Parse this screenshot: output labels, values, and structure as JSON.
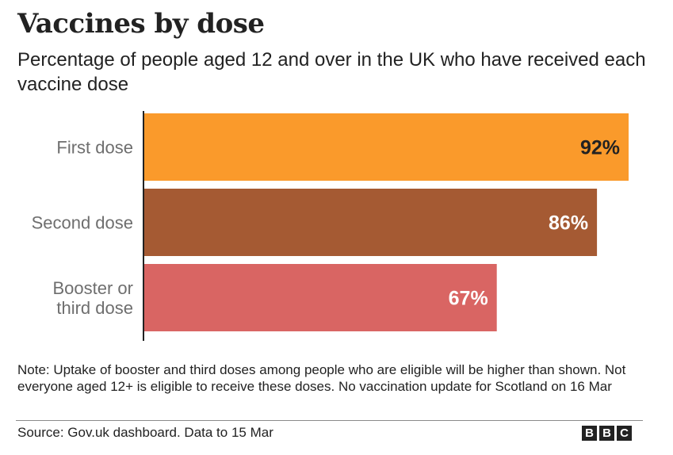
{
  "chart_data": {
    "type": "bar",
    "orientation": "horizontal",
    "title": "Vaccines by dose",
    "subtitle": "Percentage of people aged 12 and over in the UK who have received each vaccine dose",
    "categories": [
      [
        "First dose"
      ],
      [
        "Second dose"
      ],
      [
        "Booster or",
        "third dose"
      ]
    ],
    "values": [
      92,
      86,
      67
    ],
    "value_labels": [
      "92%",
      "86%",
      "67%"
    ],
    "bar_colors": [
      "#fa9a2b",
      "#a55a33",
      "#d96563"
    ],
    "label_colors": [
      "#222222",
      "#ffffff",
      "#ffffff"
    ],
    "xlim": [
      0,
      100
    ],
    "xlabel": "",
    "ylabel": "",
    "grid": false,
    "legend": "none"
  },
  "footer": {
    "note": "Note: Uptake of booster and third doses among people who are eligible will be higher than shown. Not everyone aged 12+ is eligible to receive these doses. No vaccination update for Scotland on 16 Mar",
    "source": "Source: Gov.uk dashboard. Data to 15 Mar",
    "logo_letters": [
      "B",
      "B",
      "C"
    ]
  },
  "colors": {
    "text": "#222222",
    "category_label": "#6e6e6e",
    "axis": "#222222"
  }
}
